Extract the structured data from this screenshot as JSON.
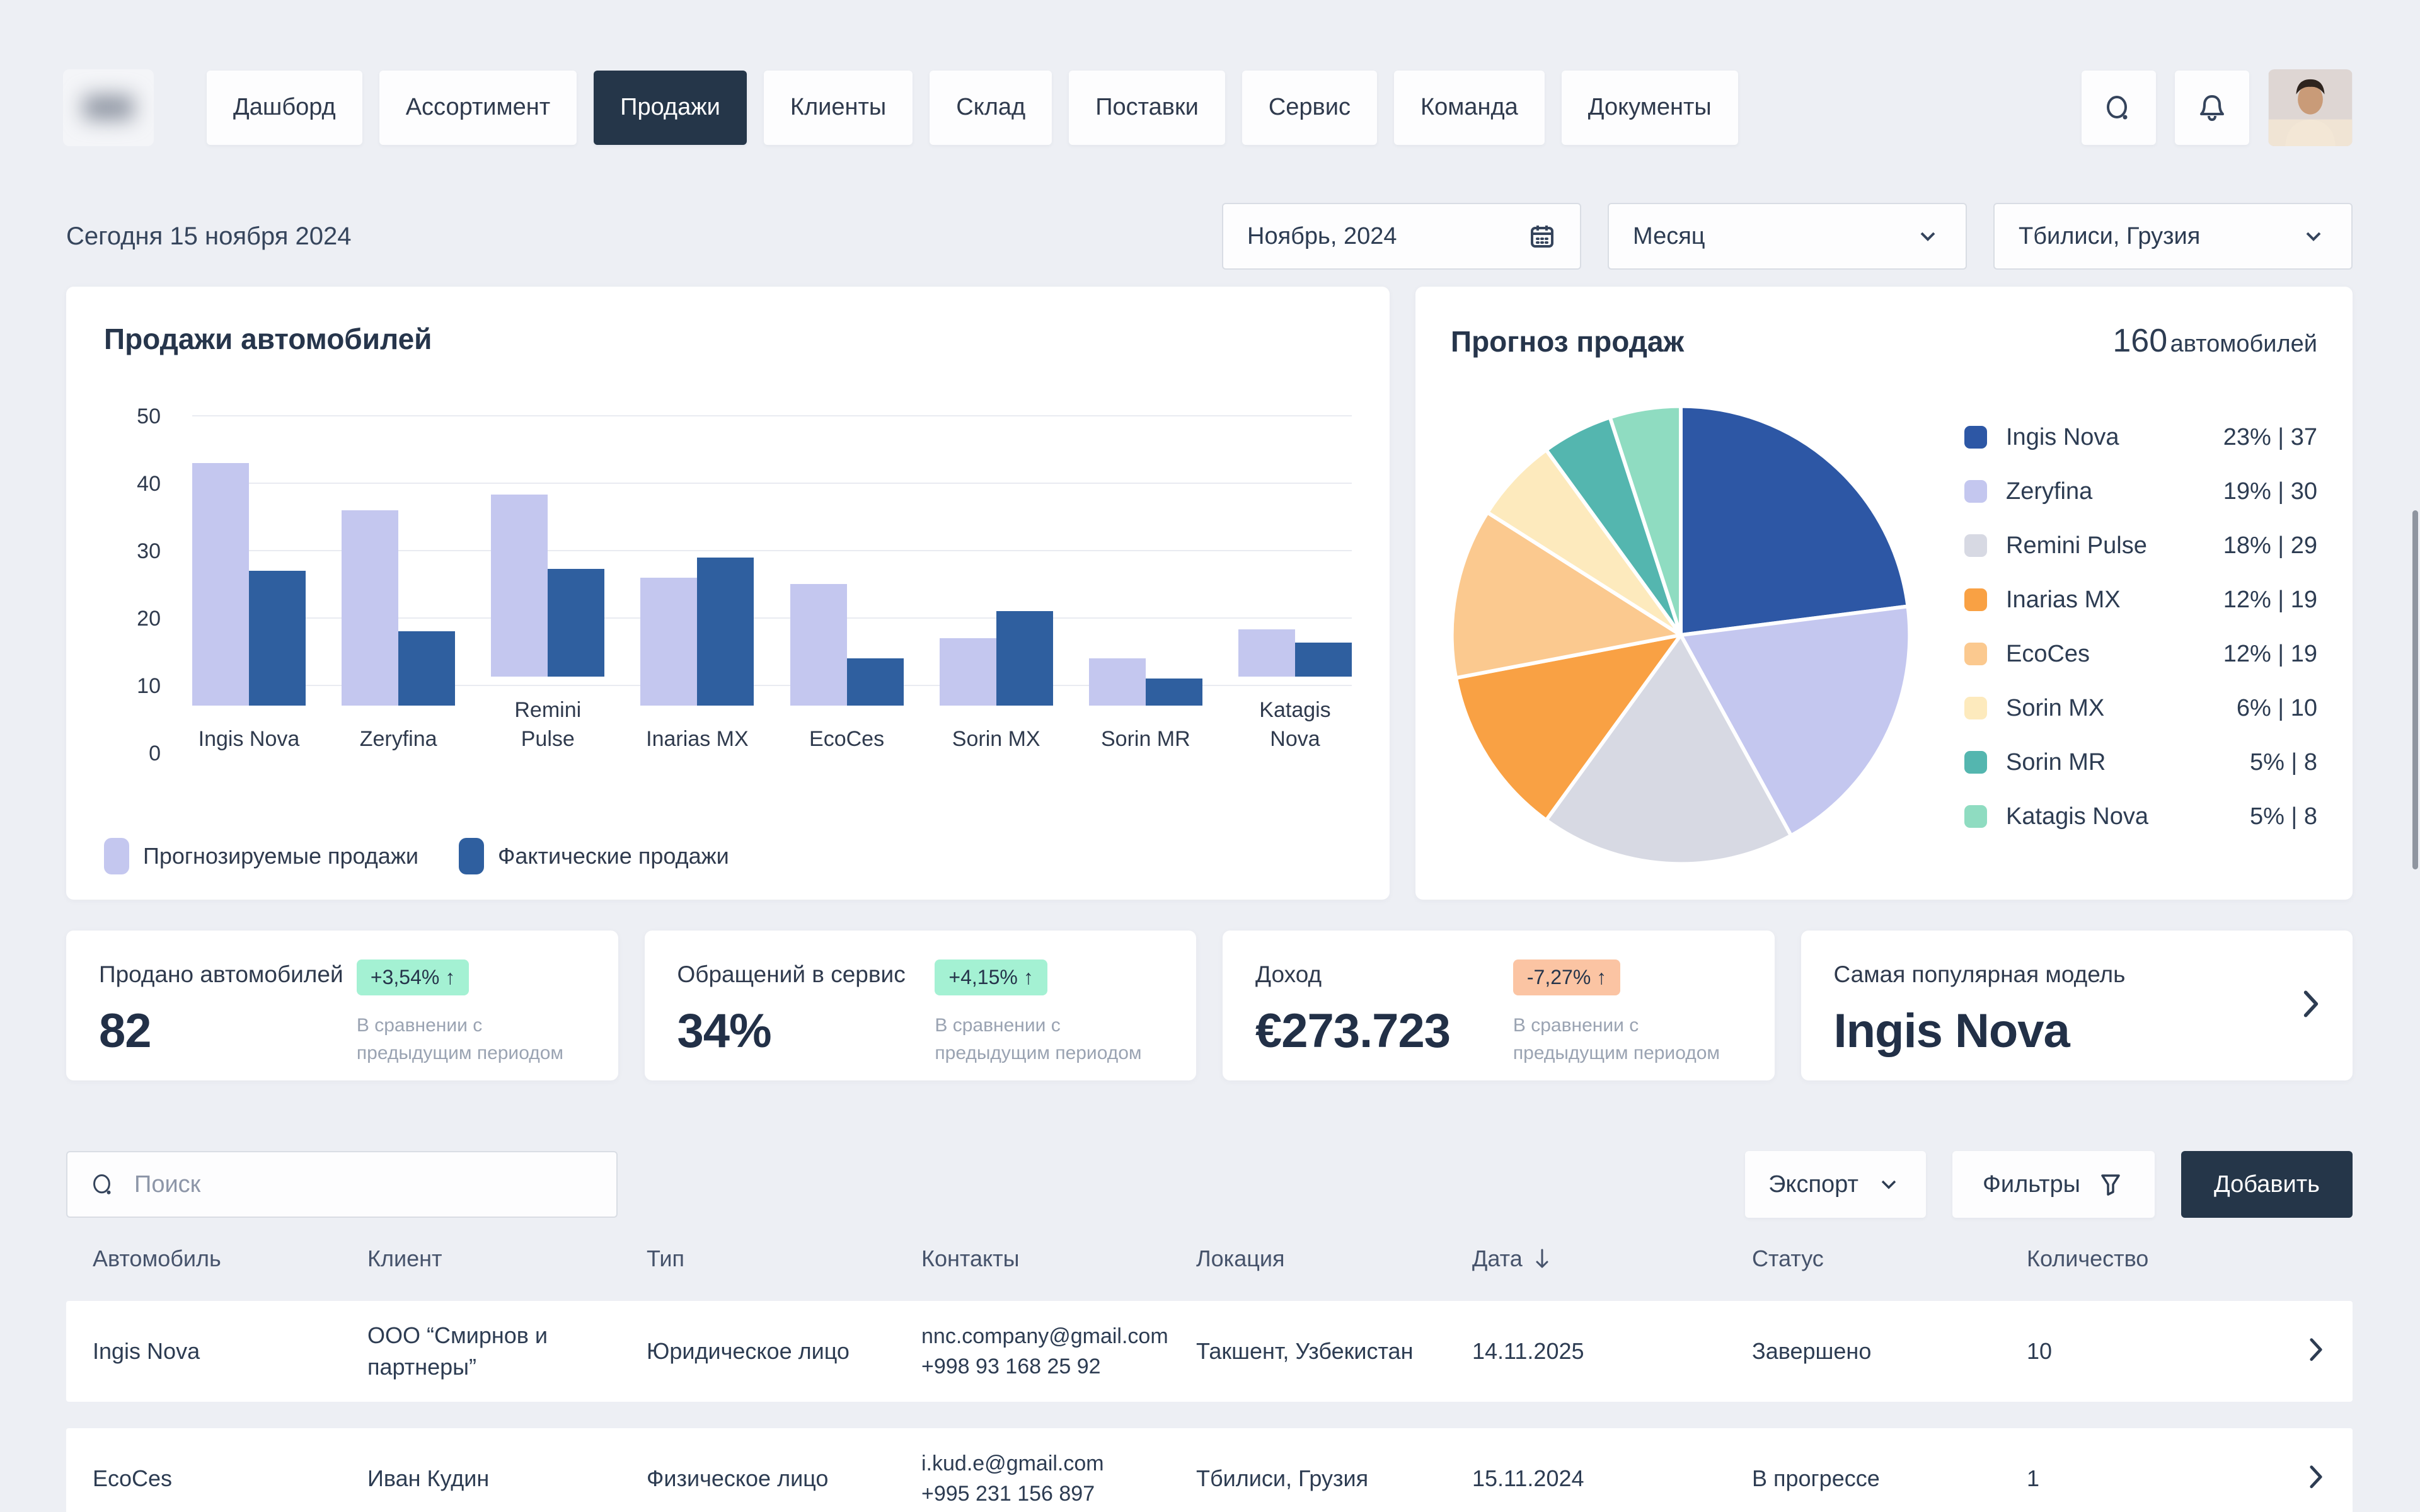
{
  "header": {
    "nav_items": [
      {
        "label": "Дашборд",
        "active": false
      },
      {
        "label": "Ассортимент",
        "active": false
      },
      {
        "label": "Продажи",
        "active": true
      },
      {
        "label": "Клиенты",
        "active": false
      },
      {
        "label": "Склад",
        "active": false
      },
      {
        "label": "Поставки",
        "active": false
      },
      {
        "label": "Сервис",
        "active": false
      },
      {
        "label": "Команда",
        "active": false
      },
      {
        "label": "Документы",
        "active": false
      }
    ]
  },
  "toolbar": {
    "today_label": "Сегодня 15 ноября 2024",
    "date_picker": "Ноябрь, 2024",
    "period_select": "Месяц",
    "location_select": "Тбилиси, Грузия"
  },
  "chart_data": [
    {
      "type": "bar",
      "title": "Продажи автомобилей",
      "categories": [
        "Ingis Nova",
        "Zeryfina",
        "Remini\nPulse",
        "Inarias MX",
        "EcoCes",
        "Sorin MX",
        "Sorin MR",
        "Katagis\nNova"
      ],
      "series": [
        {
          "name": "Прогнозируемые продажи",
          "color": "#c4c7ef",
          "values": [
            36,
            29,
            27,
            19,
            18,
            10,
            7,
            7
          ]
        },
        {
          "name": "Фактические продажи",
          "color": "#2f5f9f",
          "values": [
            20,
            11,
            16,
            22,
            7,
            14,
            4,
            5
          ]
        }
      ],
      "ylim": [
        0,
        50
      ],
      "yticks": [
        0,
        10,
        20,
        30,
        40,
        50
      ],
      "grid": true,
      "legend_position": "bottom"
    },
    {
      "type": "pie",
      "title": "Прогноз продаж",
      "total_value": "160",
      "total_unit": "автомобилей",
      "labels": [
        "Ingis Nova",
        "Zeryfina",
        "Remini Pulse",
        "Inarias MX",
        "EcoCes",
        "Sorin MX",
        "Sorin MR",
        "Katagis Nova"
      ],
      "values": [
        23,
        19,
        18,
        12,
        12,
        6,
        5,
        5
      ],
      "counts": [
        37,
        30,
        29,
        19,
        19,
        10,
        8,
        8
      ],
      "colors": [
        "#2d57a5",
        "#c4c7ef",
        "#d7d9e3",
        "#f9a144",
        "#fbc98f",
        "#fdeabd",
        "#54b6af",
        "#8fdcc1"
      ],
      "legend_position": "right"
    }
  ],
  "kpis": [
    {
      "label": "Продано автомобилей",
      "value": "82",
      "badge": "+3,54% ↑",
      "trend": "up",
      "note": "В сравнении с предыдущим периодом"
    },
    {
      "label": "Обращений в сервис",
      "value": "34%",
      "badge": "+4,15% ↑",
      "trend": "up",
      "note": "В сравнении с предыдущим периодом"
    },
    {
      "label": "Доход",
      "value": "€273.723",
      "badge": "-7,27% ↑",
      "trend": "down",
      "note": "В сравнении с предыдущим периодом"
    },
    {
      "label": "Самая популярная модель",
      "value": "Ingis Nova",
      "chevron": true
    }
  ],
  "table": {
    "search_placeholder": "Поиск",
    "export_label": "Экспорт",
    "filters_label": "Фильтры",
    "add_label": "Добавить",
    "columns": [
      "Автомобиль",
      "Клиент",
      "Тип",
      "Контакты",
      "Локация",
      "Дата",
      "Статус",
      "Количество"
    ],
    "sorted_column": "Дата",
    "rows": [
      {
        "car": "Ingis Nova",
        "client": "ООО “Смирнов и партнеры”",
        "type": "Юридическое лицо",
        "email": "nnc.company@gmail.com",
        "phone": "+998 93 168 25 92",
        "location": "Такшент, Узбекистан",
        "date": "14.11.2025",
        "status": "Завершено",
        "qty": "10"
      },
      {
        "car": "EcoCes",
        "client": "Иван Кудин",
        "type": "Физическое лицо",
        "email": "i.kud.e@gmail.com",
        "phone": "+995 231 156 897",
        "location": "Тбилиси, Грузия",
        "date": "15.11.2024",
        "status": "В прогрессе",
        "qty": "1"
      }
    ]
  },
  "colors": {
    "page_bg": "#edeff4",
    "card_bg": "#ffffff",
    "accent_dark": "#253649",
    "bar_forecast": "#c4c7ef",
    "bar_actual": "#2f5f9f",
    "badge_up_bg": "#a4f1d3",
    "badge_down_bg": "#fbc4a3",
    "grid": "#e9ebf1"
  }
}
